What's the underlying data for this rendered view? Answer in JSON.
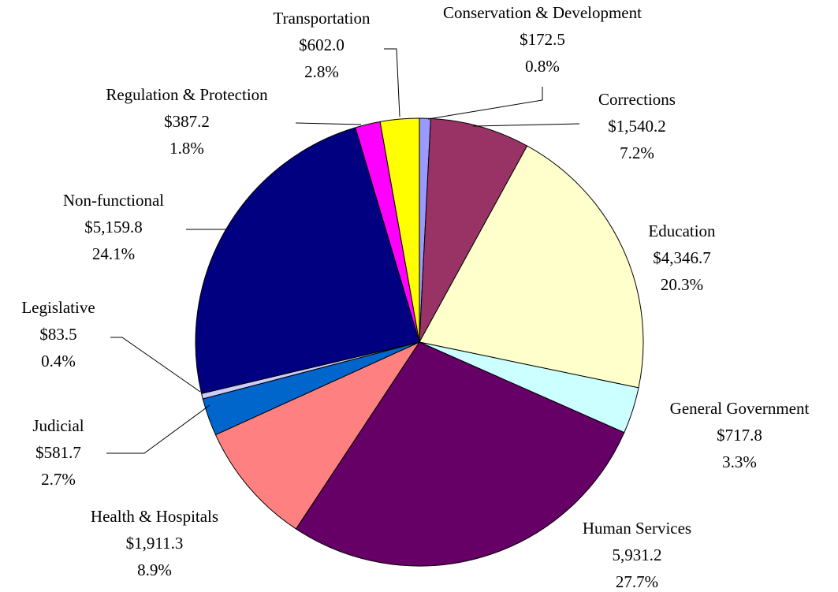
{
  "chart_data": {
    "type": "pie",
    "categories": [
      "Conservation & Development",
      "Corrections",
      "Education",
      "General Government",
      "Human Services",
      "Health & Hospitals",
      "Judicial",
      "Legislative",
      "Non-functional",
      "Regulation & Protection",
      "Transportation"
    ],
    "values": [
      172.5,
      1540.2,
      4346.7,
      717.8,
      5931.2,
      1911.3,
      581.7,
      83.5,
      5159.8,
      387.2,
      602.0
    ],
    "value_labels": [
      "$172.5",
      "$1,540.2",
      "$4,346.7",
      "$717.8",
      "5,931.2",
      "$1,911.3",
      "$581.7",
      "$83.5",
      "$5,159.8",
      "$387.2",
      "$602.0"
    ],
    "percent_labels": [
      "0.8%",
      "7.2%",
      "20.3%",
      "3.3%",
      "27.7%",
      "8.9%",
      "2.7%",
      "0.4%",
      "24.1%",
      "1.8%",
      "2.8%"
    ],
    "colors": [
      "#9999ff",
      "#993366",
      "#ffffcc",
      "#ccffff",
      "#660066",
      "#ff8080",
      "#0066cc",
      "#ccccff",
      "#000080",
      "#ff00ff",
      "#ffff00"
    ]
  }
}
